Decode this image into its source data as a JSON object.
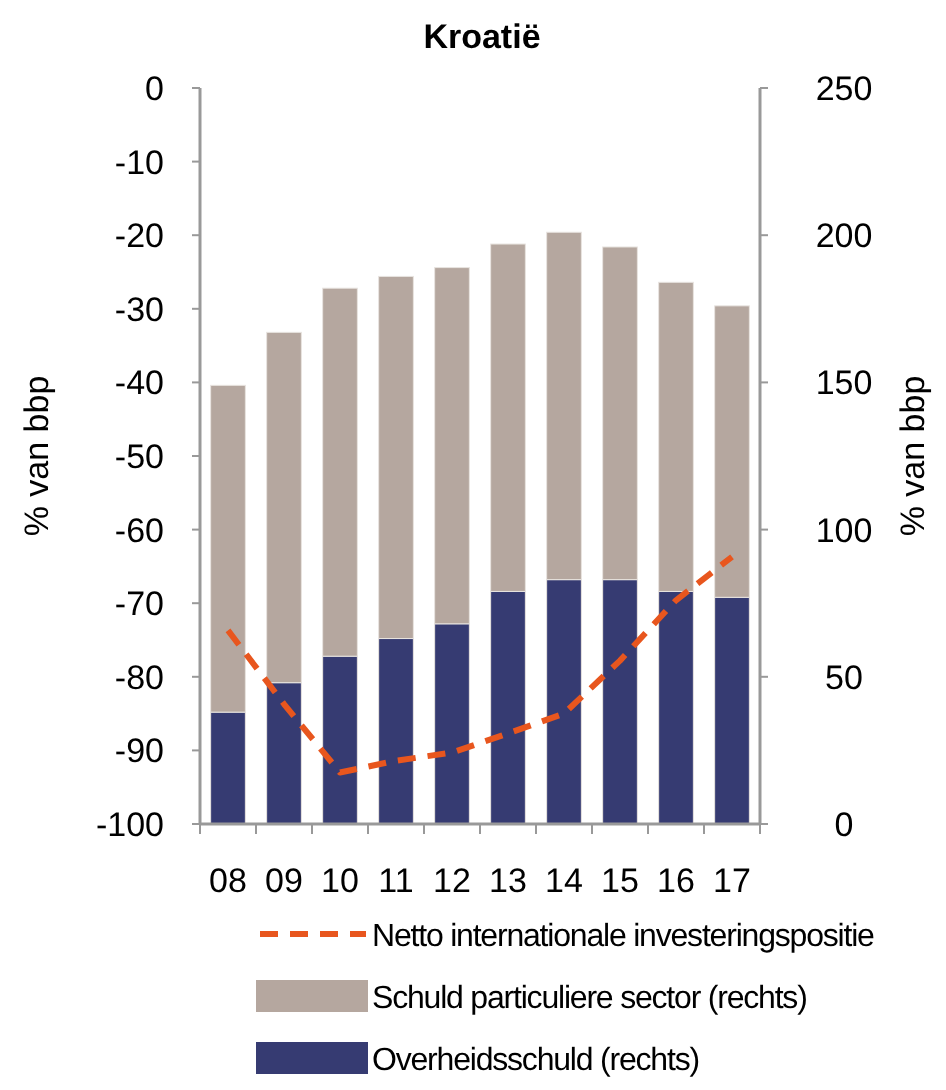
{
  "chart_data": {
    "type": "bar",
    "title": "Kroatië",
    "ylabel": "% van bbp",
    "y2label": "% van bbp",
    "categories": [
      "08",
      "09",
      "10",
      "11",
      "12",
      "13",
      "14",
      "15",
      "16",
      "17"
    ],
    "stacked": true,
    "legend": "bottom",
    "grid": false,
    "ylim": [
      -100,
      0
    ],
    "yticks": [
      -100,
      -90,
      -80,
      -70,
      -60,
      -50,
      -40,
      -30,
      -20,
      -10,
      0
    ],
    "y2lim": [
      0,
      250
    ],
    "y2ticks": [
      0,
      50,
      100,
      150,
      200,
      250
    ],
    "series": [
      {
        "name": "Overheidsschuld (rechts)",
        "color": "#363b72",
        "axis": "y2",
        "values": [
          38,
          48,
          57,
          63,
          68,
          79,
          83,
          83,
          79,
          77
        ]
      },
      {
        "name": "Schuld particuliere sector (rechts)",
        "color": "#b5a79f",
        "axis": "y2",
        "values": [
          111,
          119,
          125,
          123,
          121,
          118,
          118,
          113,
          105,
          99
        ]
      },
      {
        "name": "Netto internationale investeringspositie",
        "color": "#e8561e",
        "type": "line",
        "axis": "y",
        "line_style": "dashed",
        "marker": "none",
        "values": [
          -73.7,
          -83.7,
          -93,
          -91.4,
          -90.3,
          -87.7,
          -85,
          -77.8,
          -69.6,
          -63.7
        ]
      }
    ]
  }
}
